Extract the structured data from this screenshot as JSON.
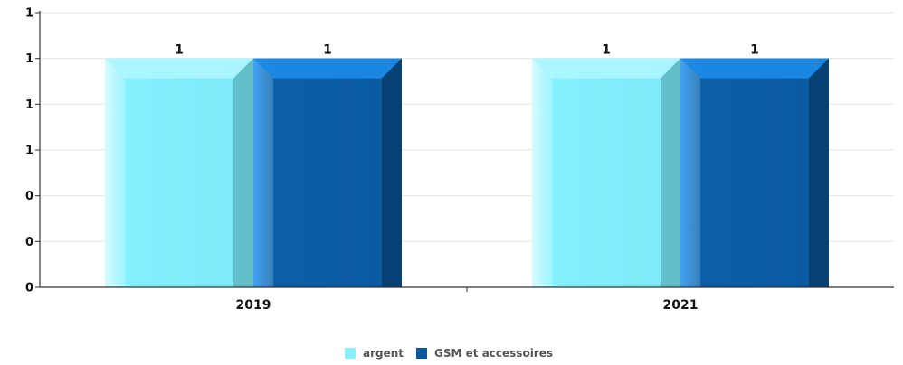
{
  "chart_data": {
    "type": "bar",
    "categories": [
      "2019",
      "2021"
    ],
    "series": [
      {
        "name": "argent",
        "values": [
          1,
          1
        ],
        "data_labels": [
          "1",
          "1"
        ],
        "color": "#84f0fd"
      },
      {
        "name": "GSM et accessoires",
        "values": [
          1,
          1
        ],
        "data_labels": [
          "1",
          "1"
        ],
        "color": "#0a5aa0"
      }
    ],
    "ylim": [
      0,
      1.2
    ],
    "y_ticks": [
      {
        "value": 0,
        "label": "0"
      },
      {
        "value": 0.2,
        "label": "0"
      },
      {
        "value": 0.4,
        "label": "0"
      },
      {
        "value": 0.6,
        "label": "1"
      },
      {
        "value": 0.8,
        "label": "1"
      },
      {
        "value": 1.0,
        "label": "1"
      },
      {
        "value": 1.2,
        "label": "1"
      }
    ],
    "grid": true,
    "legend_position": "bottom-center",
    "title": "",
    "xlabel": "",
    "ylabel": ""
  }
}
